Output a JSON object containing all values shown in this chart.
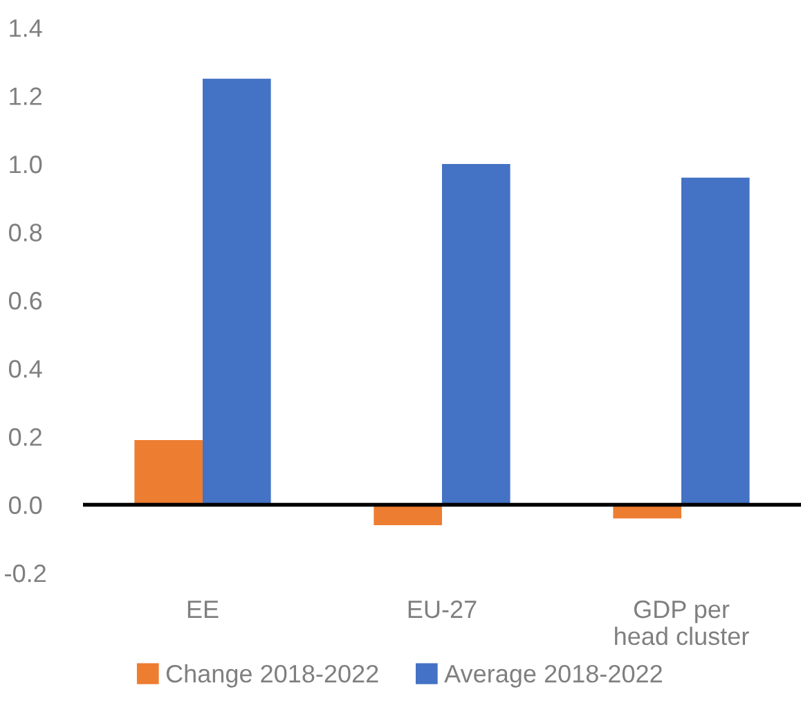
{
  "chart_data": {
    "type": "bar",
    "categories": [
      "EE",
      "EU-27",
      "GDP per\nhead cluster"
    ],
    "series": [
      {
        "name": "Change 2018-2022",
        "color": "#ed7d31",
        "values": [
          0.19,
          -0.06,
          -0.04
        ]
      },
      {
        "name": "Average 2018-2022",
        "color": "#4472c4",
        "values": [
          1.25,
          1.0,
          0.96
        ]
      }
    ],
    "ylim": [
      -0.2,
      1.4
    ],
    "yticks": [
      {
        "value": -0.2,
        "label": "-0.2"
      },
      {
        "value": 0,
        "label": "0.0"
      },
      {
        "value": 0.2,
        "label": "0.2"
      },
      {
        "value": 0.4,
        "label": "0.4"
      },
      {
        "value": 0.6,
        "label": "0.6"
      },
      {
        "value": 0.8,
        "label": "0.8"
      },
      {
        "value": 1.0,
        "label": "1.0"
      },
      {
        "value": 1.2,
        "label": "1.2"
      },
      {
        "value": 1.4,
        "label": "1.4"
      }
    ],
    "legend": "bottom"
  }
}
